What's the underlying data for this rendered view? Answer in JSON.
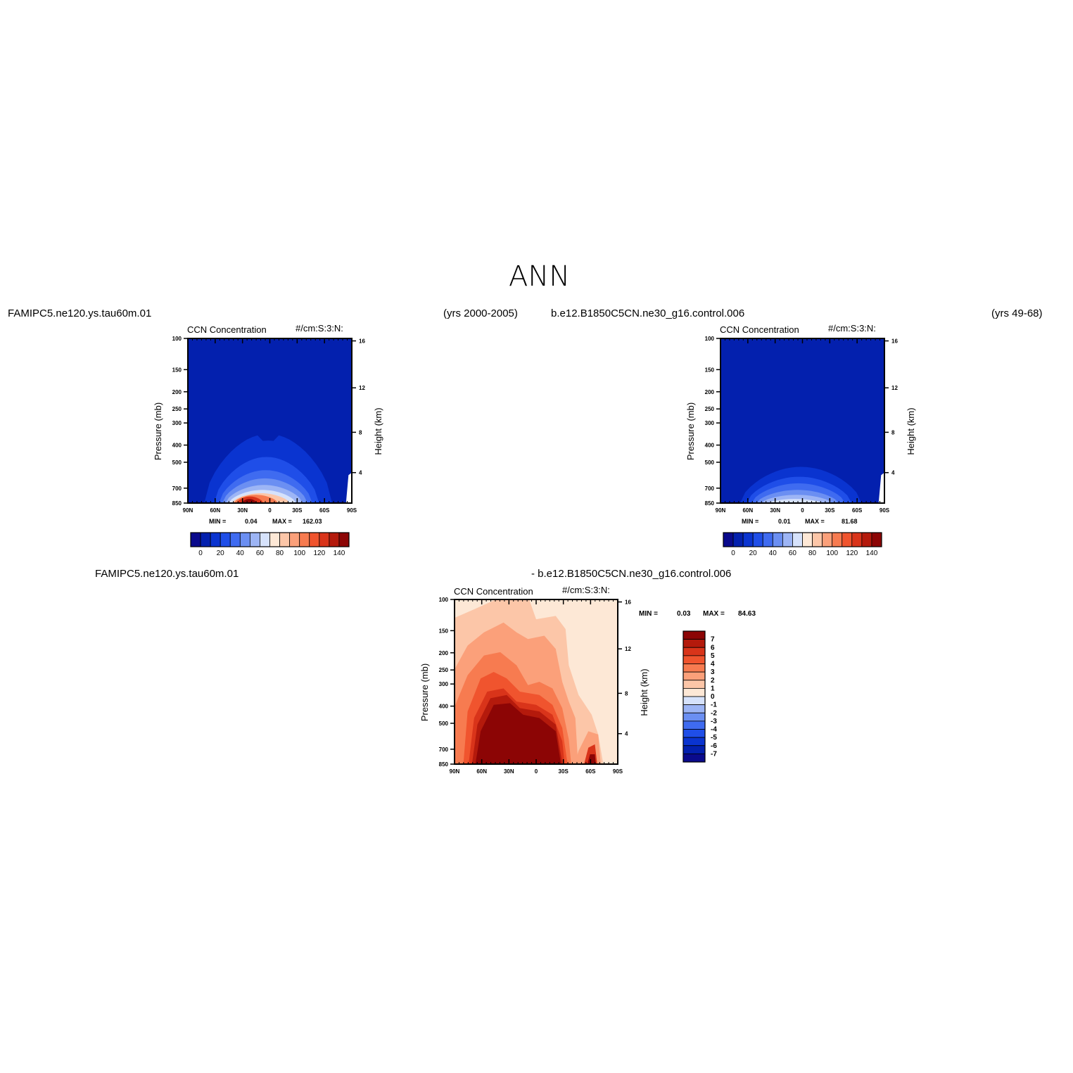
{
  "title": "ANN",
  "panels": [
    {
      "case_name": "FAMIPC5.ne120.ys.tau60m.01",
      "years": "(yrs 2000-2005)",
      "variable": "CCN Concentration",
      "units": "#/cm:S:3:N:",
      "stats": {
        "min_label": "MIN =",
        "min": "0.04",
        "max_label": "MAX =",
        "max": "162.03"
      }
    },
    {
      "case_name": "b.e12.B1850C5CN.ne30_g16.control.006",
      "years": "(yrs 49-68)",
      "variable": "CCN Concentration",
      "units": "#/cm:S:3:N:",
      "stats": {
        "min_label": "MIN =",
        "min": "0.01",
        "max_label": "MAX =",
        "max": "81.68"
      }
    },
    {
      "case_name": "FAMIPC5.ne120.ys.tau60m.01",
      "case_name_2": "- b.e12.B1850C5CN.ne30_g16.control.006",
      "variable": "CCN Concentration",
      "units": "#/cm:S:3:N:",
      "stats": {
        "min_label": "MIN =",
        "min": "0.03",
        "max_label": "MAX =",
        "max": "84.63"
      }
    }
  ],
  "colors": {
    "scale": [
      "#0a0a8c",
      "#0320ae",
      "#0a34d0",
      "#1f4ee8",
      "#3f6bf0",
      "#6b8ff2",
      "#9db5f5",
      "#d6e2fb",
      "#fde8d6",
      "#fcc6a8",
      "#fba07a",
      "#f77b50",
      "#f0542e",
      "#d9341a",
      "#b41a0c",
      "#8c0505"
    ]
  },
  "chart_data": [
    {
      "type": "heatmap",
      "title": "CCN Concentration",
      "units": "#/cm:S:3:N:",
      "x_ticks": [
        "90N",
        "60N",
        "30N",
        "0",
        "30S",
        "60S",
        "90S"
      ],
      "y_ticks": [
        "100",
        "150",
        "200",
        "250",
        "300",
        "400",
        "500",
        "700",
        "850"
      ],
      "y2_ticks": [
        "16",
        "12",
        "8",
        "4"
      ],
      "ylabel": "Pressure (mb)",
      "y2label": "Height (km)",
      "colorbar_labels": [
        "0",
        "20",
        "40",
        "60",
        "80",
        "100",
        "120",
        "140"
      ],
      "min": 0.04,
      "max": 162.03
    },
    {
      "type": "heatmap",
      "title": "CCN Concentration",
      "units": "#/cm:S:3:N:",
      "x_ticks": [
        "90N",
        "60N",
        "30N",
        "0",
        "30S",
        "60S",
        "90S"
      ],
      "y_ticks": [
        "100",
        "150",
        "200",
        "250",
        "300",
        "400",
        "500",
        "700",
        "850"
      ],
      "y2_ticks": [
        "16",
        "12",
        "8",
        "4"
      ],
      "ylabel": "Pressure (mb)",
      "y2label": "Height (km)",
      "colorbar_labels": [
        "0",
        "20",
        "40",
        "60",
        "80",
        "100",
        "120",
        "140"
      ],
      "min": 0.01,
      "max": 81.68
    },
    {
      "type": "heatmap",
      "title": "CCN Concentration",
      "units": "#/cm:S:3:N:",
      "x_ticks": [
        "90N",
        "60N",
        "30N",
        "0",
        "30S",
        "60S",
        "90S"
      ],
      "y_ticks": [
        "100",
        "150",
        "200",
        "250",
        "300",
        "400",
        "500",
        "700",
        "850"
      ],
      "y2_ticks": [
        "16",
        "12",
        "8",
        "4"
      ],
      "ylabel": "Pressure (mb)",
      "y2label": "Height (km)",
      "colorbar_labels": [
        "7",
        "6",
        "5",
        "4",
        "3",
        "2",
        "1",
        "0",
        "-1",
        "-2",
        "-3",
        "-4",
        "-5",
        "-6",
        "-7"
      ],
      "min": 0.03,
      "max": 84.63
    }
  ]
}
